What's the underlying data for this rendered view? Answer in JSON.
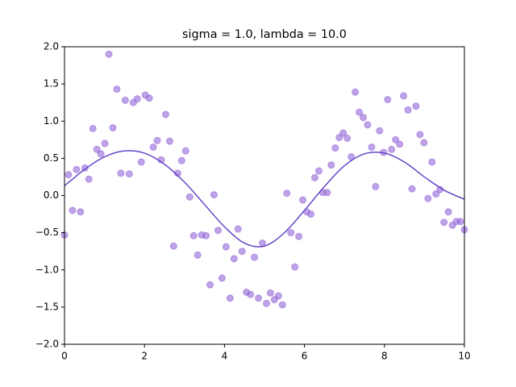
{
  "chart_data": {
    "type": "scatter",
    "title": "sigma = 1.0, lambda = 10.0",
    "xlim": [
      0,
      10
    ],
    "ylim": [
      -2,
      2
    ],
    "xticks": [
      0,
      2,
      4,
      6,
      8,
      10
    ],
    "yticks": [
      {
        "value": -2,
        "label": "−2.0"
      },
      {
        "value": -1.5,
        "label": "−1.5"
      },
      {
        "value": -1,
        "label": "−1.0"
      },
      {
        "value": -0.5,
        "label": "−0.5"
      },
      {
        "value": 0,
        "label": "0.0"
      },
      {
        "value": 0.5,
        "label": "0.5"
      },
      {
        "value": 1,
        "label": "1.0"
      },
      {
        "value": 1.5,
        "label": "1.5"
      },
      {
        "value": 2,
        "label": "2.0"
      }
    ],
    "series": [
      {
        "type": "scatter",
        "color": "#9466d8",
        "x": [
          0,
          0.1,
          0.2,
          0.3,
          0.4,
          0.51,
          0.61,
          0.71,
          0.81,
          0.91,
          1.01,
          1.11,
          1.21,
          1.31,
          1.41,
          1.52,
          1.62,
          1.72,
          1.82,
          1.92,
          2.02,
          2.12,
          2.22,
          2.32,
          2.42,
          2.53,
          2.63,
          2.73,
          2.83,
          2.93,
          3.03,
          3.13,
          3.23,
          3.33,
          3.43,
          3.54,
          3.64,
          3.74,
          3.84,
          3.94,
          4.04,
          4.14,
          4.24,
          4.34,
          4.44,
          4.55,
          4.65,
          4.75,
          4.85,
          4.95,
          5.05,
          5.15,
          5.25,
          5.35,
          5.45,
          5.56,
          5.66,
          5.76,
          5.86,
          5.96,
          6.06,
          6.16,
          6.26,
          6.36,
          6.46,
          6.57,
          6.67,
          6.77,
          6.87,
          6.97,
          7.07,
          7.17,
          7.27,
          7.37,
          7.47,
          7.58,
          7.68,
          7.78,
          7.88,
          7.98,
          8.08,
          8.18,
          8.28,
          8.38,
          8.48,
          8.59,
          8.69,
          8.79,
          8.89,
          8.99,
          9.09,
          9.19,
          9.29,
          9.39,
          9.49,
          9.6,
          9.7,
          9.8,
          9.9,
          10
        ],
        "values": [
          -0.53,
          0.28,
          -0.2,
          0.35,
          -0.22,
          0.37,
          0.22,
          0.9,
          0.62,
          0.56,
          0.7,
          1.9,
          0.91,
          1.43,
          0.3,
          1.28,
          0.29,
          1.25,
          1.3,
          0.45,
          1.35,
          1.31,
          0.65,
          0.74,
          0.48,
          1.09,
          0.73,
          -0.68,
          0.3,
          0.47,
          0.6,
          -0.02,
          -0.54,
          -0.8,
          -0.53,
          -0.54,
          -1.2,
          0.01,
          -0.47,
          -1.11,
          -0.69,
          -1.38,
          -0.85,
          -0.45,
          -0.75,
          -1.3,
          -1.33,
          -0.83,
          -1.38,
          -0.64,
          -1.45,
          -1.31,
          -1.4,
          -1.35,
          -1.47,
          0.03,
          -0.5,
          -0.96,
          -0.55,
          -0.06,
          -0.22,
          -0.25,
          0.24,
          0.33,
          0.04,
          0.04,
          0.41,
          0.64,
          0.78,
          0.84,
          0.77,
          0.52,
          1.39,
          1.12,
          1.05,
          0.95,
          0.65,
          0.12,
          0.87,
          0.58,
          1.29,
          0.62,
          0.75,
          0.69,
          1.34,
          1.15,
          0.09,
          1.2,
          0.82,
          0.71,
          -0.04,
          0.45,
          0.02,
          0.08,
          -0.36,
          -0.22,
          -0.4,
          -0.35,
          -0.35,
          -0.46
        ]
      },
      {
        "type": "line",
        "color": "#6646c8",
        "x": [
          0,
          0.5,
          1,
          1.5,
          2,
          2.5,
          3,
          3.5,
          4,
          4.5,
          5,
          5.5,
          6,
          6.5,
          7,
          7.5,
          8,
          8.5,
          9,
          9.5,
          10
        ],
        "values": [
          0.13,
          0.35,
          0.52,
          0.6,
          0.57,
          0.42,
          0.18,
          -0.12,
          -0.42,
          -0.64,
          -0.68,
          -0.5,
          -0.2,
          0.12,
          0.4,
          0.56,
          0.57,
          0.45,
          0.25,
          0.07,
          -0.05
        ]
      }
    ]
  }
}
